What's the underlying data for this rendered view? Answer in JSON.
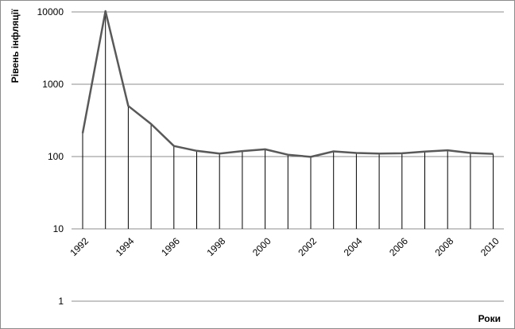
{
  "chart_data": {
    "type": "line",
    "title": "",
    "xlabel": "Роки",
    "ylabel": "Рівень інфляції",
    "y_scale": "log",
    "ylim": [
      1,
      10000
    ],
    "y_ticks": [
      "1",
      "10",
      "100",
      "1000",
      "10000"
    ],
    "x_tick_labels": [
      "1992",
      "1994",
      "1996",
      "1998",
      "2000",
      "2002",
      "2004",
      "2006",
      "2008",
      "2010"
    ],
    "grid": "horizontal",
    "legend": "none",
    "line_color": "#595959",
    "x": [
      1992,
      1993,
      1994,
      1995,
      1996,
      1997,
      1998,
      1999,
      2000,
      2001,
      2002,
      2003,
      2004,
      2005,
      2006,
      2007,
      2008,
      2009,
      2010
    ],
    "values": [
      210,
      10256,
      501,
      282,
      140,
      120,
      110,
      119,
      126,
      106,
      99,
      118,
      112,
      110,
      111,
      117,
      122,
      112,
      109
    ]
  }
}
